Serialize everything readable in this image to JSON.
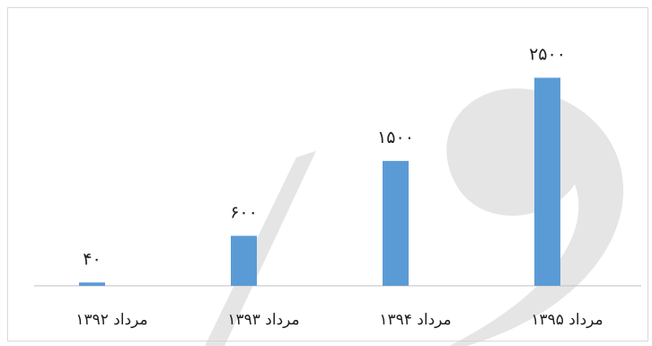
{
  "chart_data": {
    "type": "bar",
    "categories": [
      "مرداد ۱۳۹۲",
      "مرداد ۱۳۹۳",
      "مرداد ۱۳۹۴",
      "مرداد ۱۳۹۵"
    ],
    "values": [
      40,
      600,
      1500,
      2500
    ],
    "data_labels": [
      "۴۰",
      "۶۰۰",
      "۱۵۰۰",
      "۲۵۰۰"
    ],
    "title": "",
    "xlabel": "",
    "ylabel": "",
    "ylim": [
      0,
      2700
    ],
    "grid": false,
    "legend": "none",
    "bar_color": "#5b9bd5",
    "axis_color": "#bfbfbf"
  }
}
